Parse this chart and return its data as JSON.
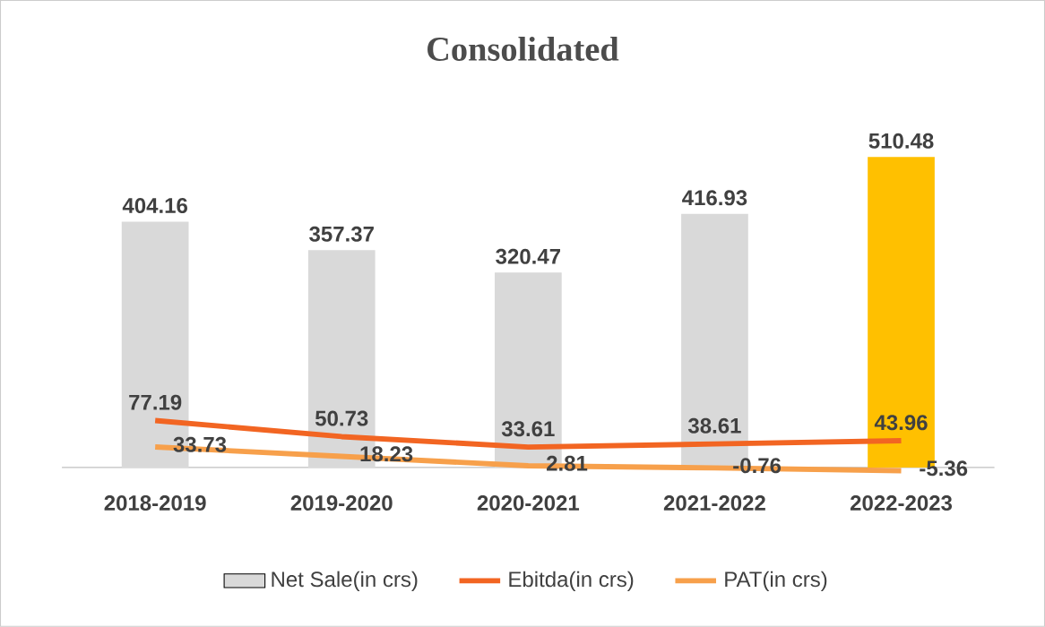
{
  "chart_data": {
    "type": "bar",
    "title": "Consolidated",
    "categories": [
      "2018-2019",
      "2019-2020",
      "2020-2021",
      "2021-2022",
      "2022-2023"
    ],
    "series": [
      {
        "name": "Net Sale(in crs)",
        "color": "#d9d9d9",
        "colors": [
          "#d9d9d9",
          "#d9d9d9",
          "#d9d9d9",
          "#d9d9d9",
          "#ffc000"
        ],
        "values": [
          404.16,
          357.37,
          320.47,
          416.93,
          510.48
        ]
      },
      {
        "name": "Ebitda(in crs)",
        "type": "line",
        "color": "#f26522",
        "values": [
          77.19,
          50.73,
          33.61,
          38.61,
          43.96
        ]
      },
      {
        "name": "PAT(in crs)",
        "type": "line",
        "color": "#f7a04b",
        "values": [
          33.73,
          18.23,
          2.81,
          -0.76,
          -5.36
        ]
      }
    ],
    "data_labels": true,
    "legend": "bottom"
  }
}
